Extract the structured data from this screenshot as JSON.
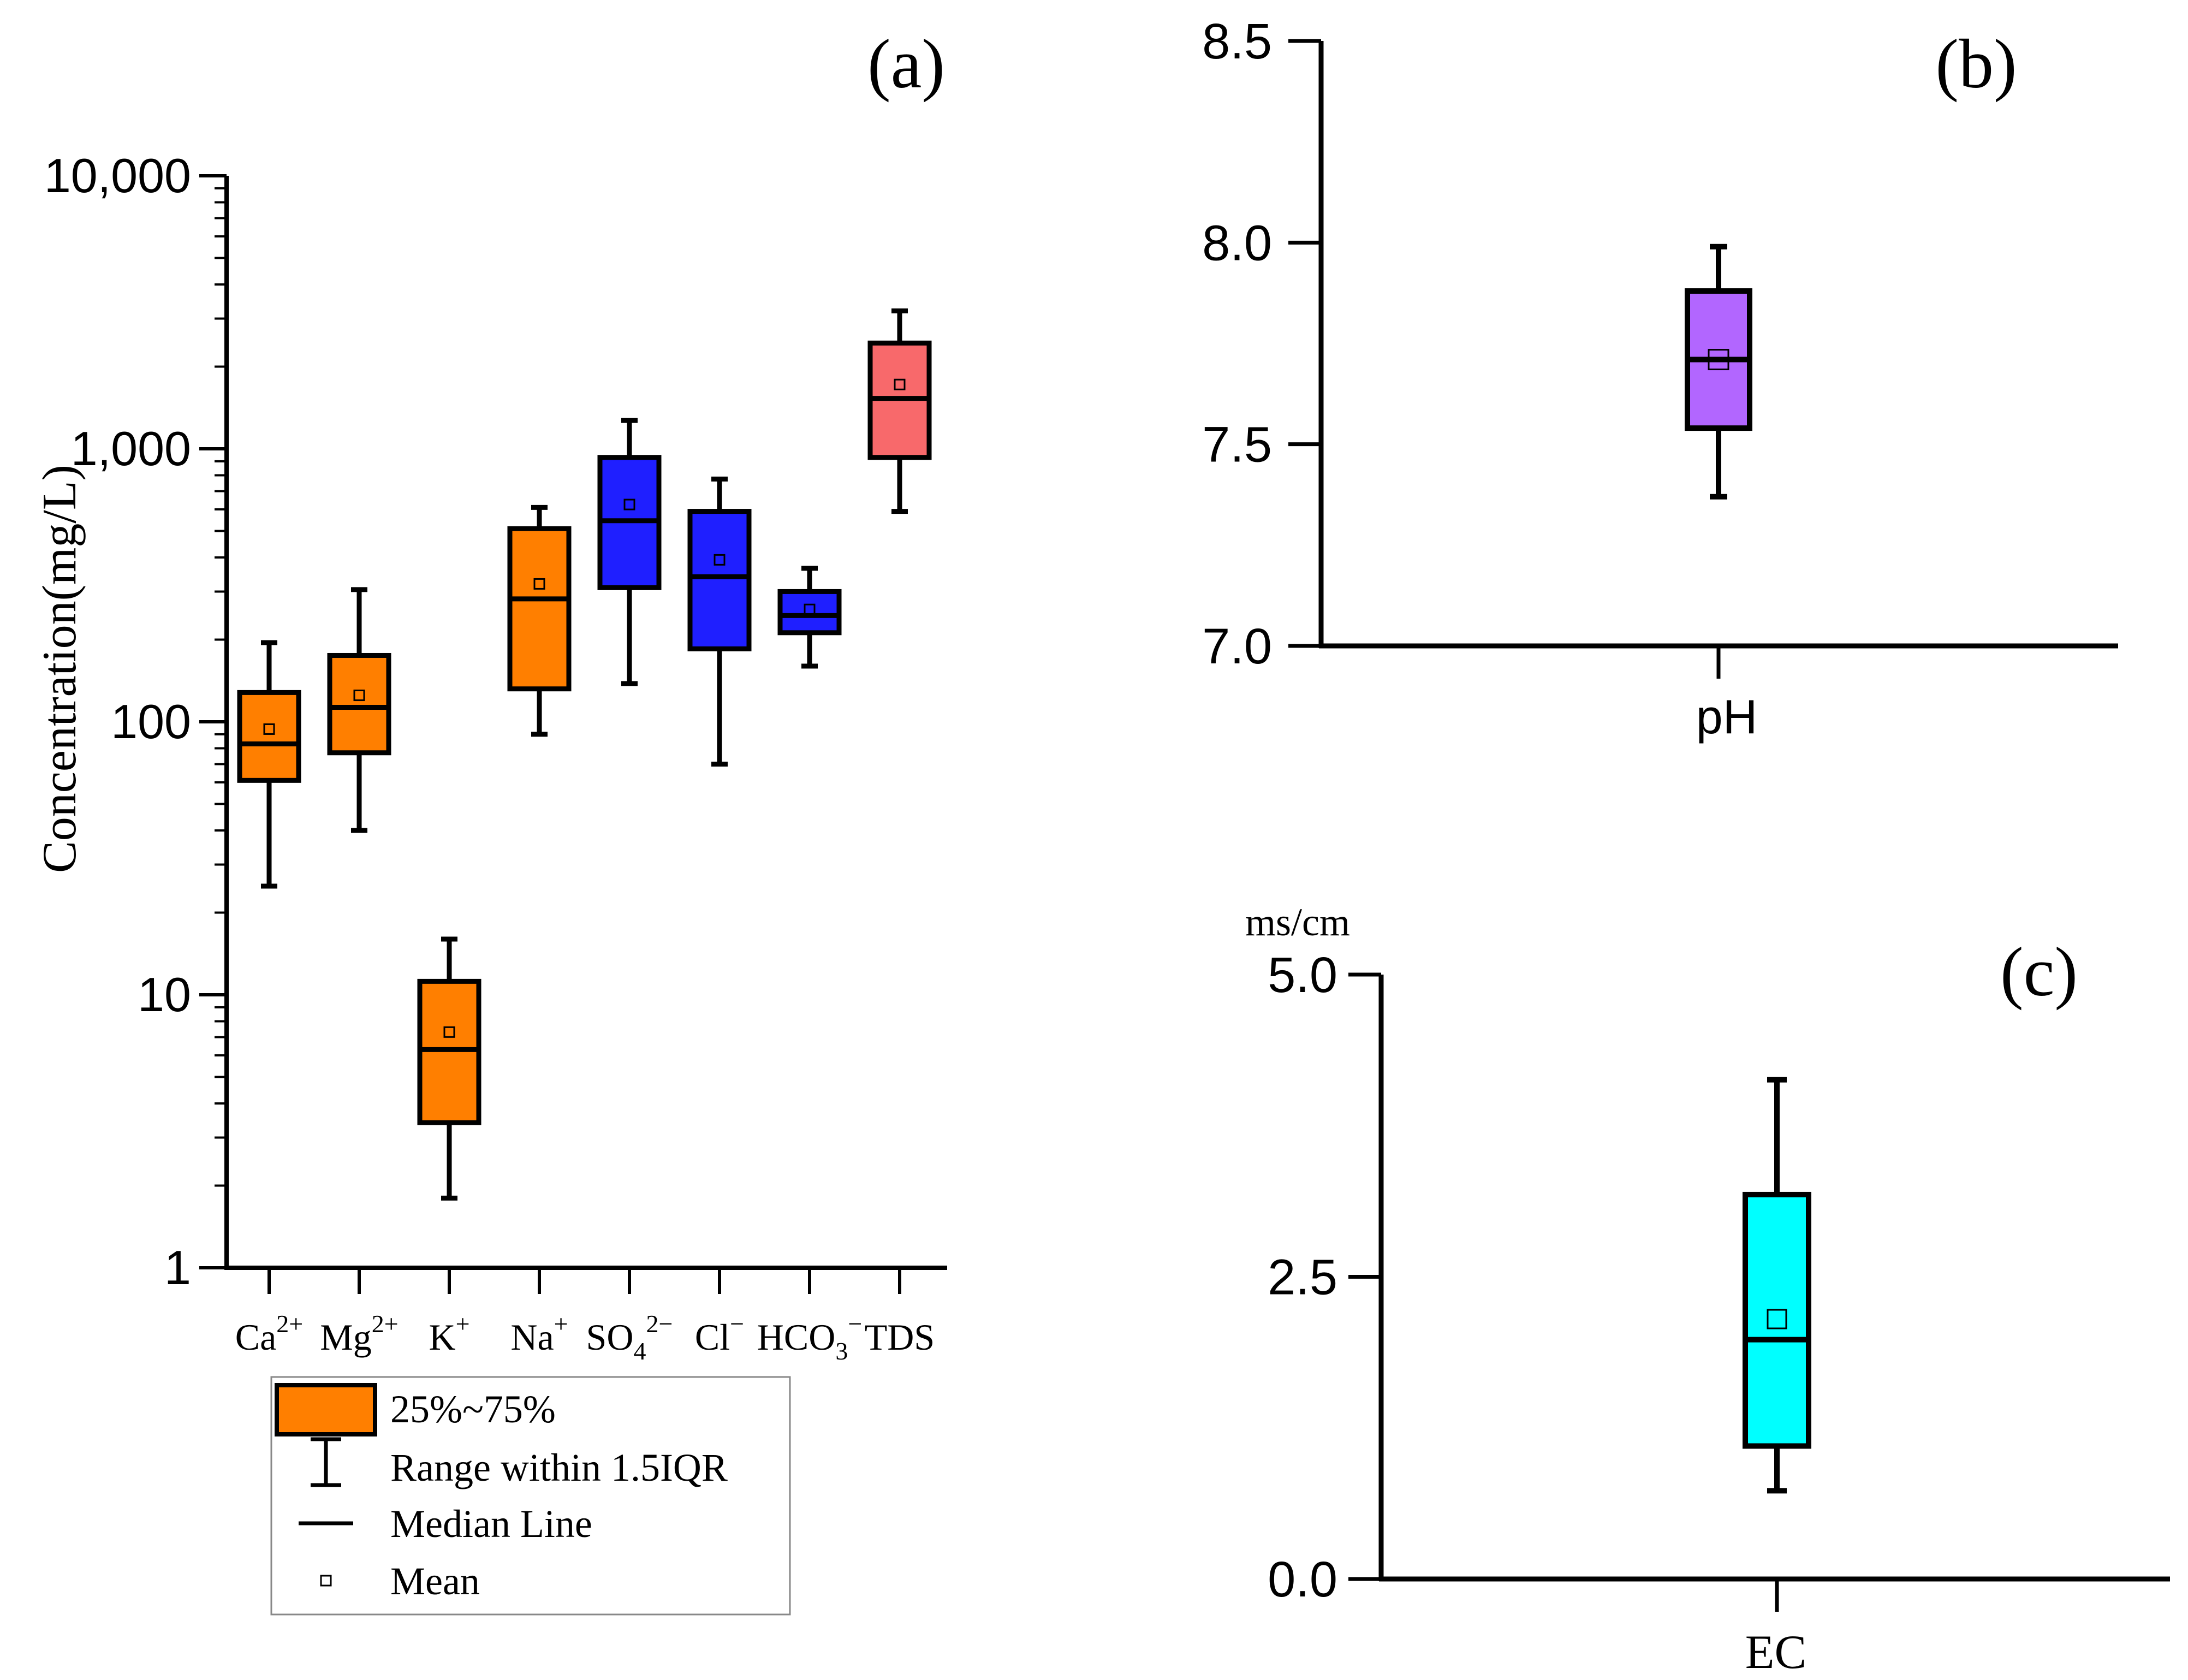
{
  "chart_data": [
    {
      "panel": "(a)",
      "type": "box",
      "scale": "log",
      "ylabel": "Concentration(mg/L)",
      "ylim": [
        1,
        10000
      ],
      "yticks": [
        {
          "value": 1,
          "label": "1"
        },
        {
          "value": 10,
          "label": "10"
        },
        {
          "value": 100,
          "label": "100"
        },
        {
          "value": 1000,
          "label": "1,000"
        },
        {
          "value": 10000,
          "label": "10,000"
        }
      ],
      "categories": [
        {
          "base": "Ca",
          "sub": "",
          "sup": "2+"
        },
        {
          "base": "Mg",
          "sub": "",
          "sup": "2+"
        },
        {
          "base": "K",
          "sub": "",
          "sup": "+"
        },
        {
          "base": "Na",
          "sub": "",
          "sup": "+"
        },
        {
          "base": "SO",
          "sub": "4",
          "sup": "2−"
        },
        {
          "base": "Cl",
          "sub": "",
          "sup": "−"
        },
        {
          "base": "HCO",
          "sub": "3",
          "sup": "−"
        },
        {
          "base": "TDS",
          "sub": "",
          "sup": ""
        }
      ],
      "boxes": [
        {
          "q1": 61,
          "median": 83,
          "q3": 128,
          "whisker_low": 25,
          "whisker_high": 195,
          "mean": 94,
          "color": "#FF7F00"
        },
        {
          "q1": 77,
          "median": 113,
          "q3": 175,
          "whisker_low": 40,
          "whisker_high": 305,
          "mean": 125,
          "color": "#FF7F00"
        },
        {
          "q1": 3.4,
          "median": 6.3,
          "q3": 11.2,
          "whisker_low": 1.8,
          "whisker_high": 16,
          "mean": 7.3,
          "color": "#FF7F00"
        },
        {
          "q1": 132,
          "median": 282,
          "q3": 510,
          "whisker_low": 90,
          "whisker_high": 610,
          "mean": 320,
          "color": "#FF7F00"
        },
        {
          "q1": 310,
          "median": 545,
          "q3": 930,
          "whisker_low": 138,
          "whisker_high": 1270,
          "mean": 625,
          "color": "#1F1FFF"
        },
        {
          "q1": 185,
          "median": 340,
          "q3": 590,
          "whisker_low": 70,
          "whisker_high": 775,
          "mean": 392,
          "color": "#1F1FFF"
        },
        {
          "q1": 212,
          "median": 245,
          "q3": 300,
          "whisker_low": 160,
          "whisker_high": 365,
          "mean": 258,
          "color": "#1F1FFF"
        },
        {
          "q1": 930,
          "median": 1530,
          "q3": 2440,
          "whisker_low": 590,
          "whisker_high": 3200,
          "mean": 1720,
          "color": "#F8696B"
        }
      ],
      "legend": [
        {
          "kind": "box",
          "label": "25%~75%",
          "color": "#FF7F00"
        },
        {
          "kind": "whisker",
          "label": "Range within 1.5IQR"
        },
        {
          "kind": "median",
          "label": "Median Line"
        },
        {
          "kind": "mean",
          "label": "Mean"
        }
      ]
    },
    {
      "panel": "(b)",
      "type": "box",
      "scale": "linear",
      "ylim": [
        7.0,
        8.5
      ],
      "yticks": [
        {
          "value": 7.0,
          "label": "7.0"
        },
        {
          "value": 7.5,
          "label": "7.5"
        },
        {
          "value": 8.0,
          "label": "8.0"
        },
        {
          "value": 8.5,
          "label": "8.5"
        }
      ],
      "category": "pH",
      "box": {
        "q1": 7.54,
        "median": 7.71,
        "q3": 7.88,
        "whisker_low": 7.37,
        "whisker_high": 7.99,
        "mean": 7.71,
        "color": "#B266FF"
      }
    },
    {
      "panel": "(c)",
      "type": "box",
      "scale": "linear",
      "unit": "ms/cm",
      "ylim": [
        0.0,
        5.0
      ],
      "yticks": [
        {
          "value": 0.0,
          "label": "0.0"
        },
        {
          "value": 2.5,
          "label": "2.5"
        },
        {
          "value": 5.0,
          "label": "5.0"
        }
      ],
      "category": "EC",
      "box": {
        "q1": 1.1,
        "median": 1.98,
        "q3": 3.18,
        "whisker_low": 0.73,
        "whisker_high": 4.13,
        "mean": 2.15,
        "color": "#00FFFF"
      }
    }
  ]
}
